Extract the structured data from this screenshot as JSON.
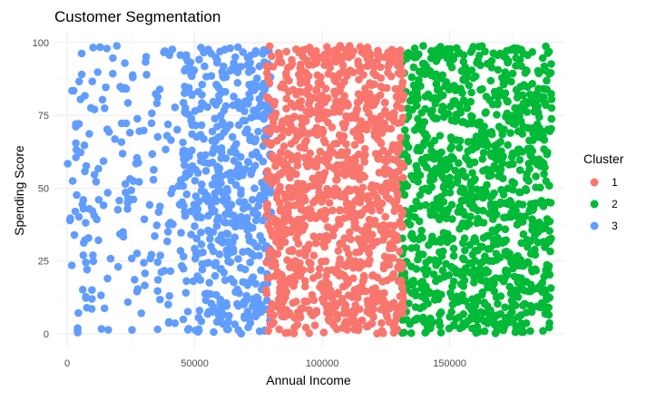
{
  "chart_data": {
    "type": "scatter",
    "title": "Customer Segmentation",
    "xlabel": "Annual Income",
    "ylabel": "Spending Score",
    "xlim": [
      -5000,
      195000
    ],
    "ylim": [
      -5,
      104
    ],
    "x_ticks": [
      0,
      50000,
      100000,
      150000
    ],
    "x_tick_labels": [
      "0",
      "50000",
      "100000",
      "150000"
    ],
    "y_ticks": [
      0,
      25,
      50,
      75,
      100
    ],
    "y_tick_labels": [
      "0",
      "25",
      "50",
      "75",
      "100"
    ],
    "grid": true,
    "legend": {
      "title": "Cluster",
      "placement": "right"
    },
    "marker_opacity": 1,
    "series": [
      {
        "name": "1",
        "color": "#F8766D",
        "x_range": [
          78000,
          132000
        ],
        "y_range": [
          0,
          99
        ],
        "count": 1150
      },
      {
        "name": "2",
        "color": "#00BA38",
        "x_range": [
          131000,
          190000
        ],
        "y_range": [
          0,
          99
        ],
        "count": 1100
      },
      {
        "name": "3",
        "color": "#619CFF",
        "x_range": [
          0,
          80000
        ],
        "y_range": [
          0,
          99
        ],
        "count": 720,
        "density_note": "sparse below 45000, dense 45000-80000"
      }
    ]
  }
}
